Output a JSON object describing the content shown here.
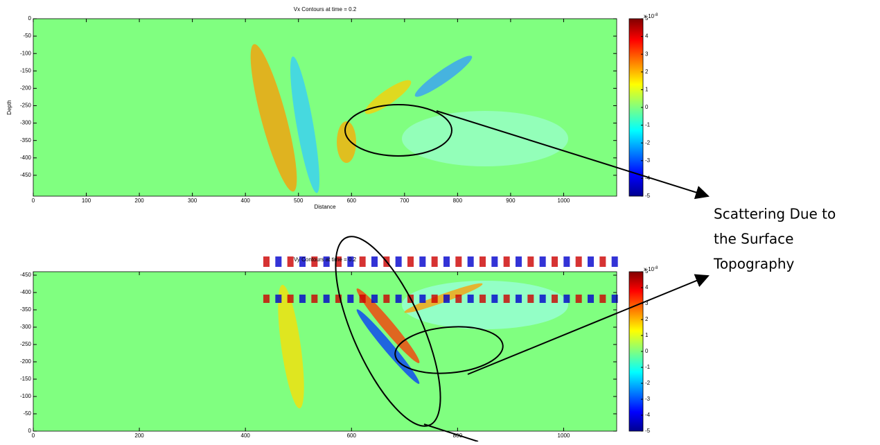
{
  "chart_data": [
    {
      "type": "heatmap",
      "title": "Vx Contours at time = 0.2",
      "xlabel": "Distance",
      "ylabel": "Depth",
      "xlim": [
        0,
        1100
      ],
      "ylim": [
        -510,
        0
      ],
      "xticks": [
        0,
        100,
        200,
        300,
        400,
        500,
        600,
        700,
        800,
        900,
        1000
      ],
      "yticks": [
        0,
        -50,
        -100,
        -150,
        -200,
        -250,
        -300,
        -350,
        -400,
        -450
      ],
      "clim": [
        -5,
        5
      ],
      "cticks": [
        5,
        4,
        3,
        2,
        1,
        0,
        -1,
        -2,
        -3,
        -4,
        -5
      ],
      "colorbar_label": {
        "base": "x 10",
        "power": "-8"
      }
    },
    {
      "type": "heatmap",
      "title": "Vy Contours at time = 0.2",
      "xlim": [
        0,
        1100
      ],
      "ylim": [
        0,
        -460
      ],
      "xticks": [
        0,
        200,
        400,
        600,
        800,
        1000
      ],
      "yticks": [
        -450,
        -400,
        -350,
        -300,
        -250,
        -200,
        -150,
        -100,
        -50,
        0
      ],
      "clim": [
        -5,
        5
      ],
      "cticks": [
        5,
        4,
        3,
        2,
        1,
        0,
        -1,
        -2,
        -3,
        -4,
        -5
      ],
      "colorbar_label": {
        "base": "x 10",
        "power": "-8"
      }
    }
  ],
  "annotation": [
    "Scattering Due to",
    "the Surface",
    "Topography"
  ]
}
